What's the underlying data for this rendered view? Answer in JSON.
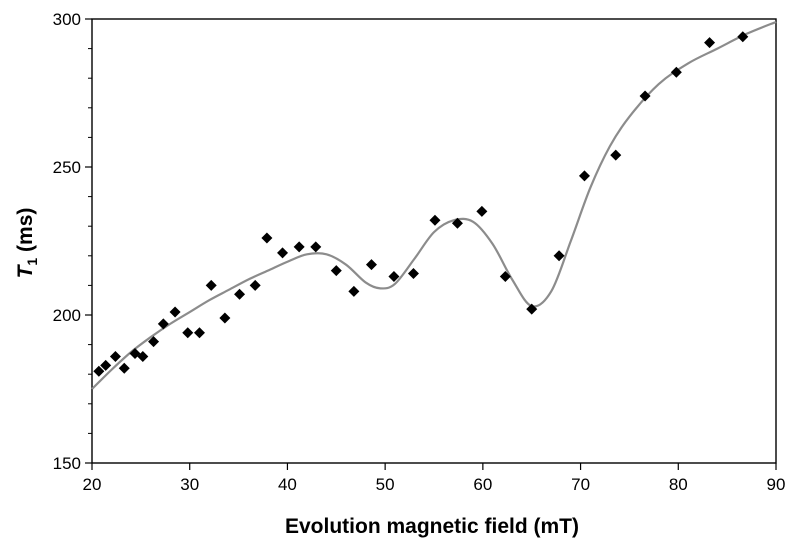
{
  "chart_data": {
    "type": "scatter",
    "title": "",
    "xlabel": "Evolution magnetic field (mT)",
    "ylabel": {
      "symbol": "T",
      "subscript": "1",
      "unit": " (ms)"
    },
    "xlim": [
      20,
      90
    ],
    "ylim": [
      150,
      300
    ],
    "xticks": [
      20,
      30,
      40,
      50,
      60,
      70,
      80,
      90
    ],
    "yticks": [
      150,
      200,
      250,
      300
    ],
    "grid": false,
    "legend": "none",
    "colors": {
      "markers": "#000000",
      "fit_line": "#8c8c8c"
    },
    "series": [
      {
        "kind": "markers",
        "marker": "diamond",
        "x": [
          20.7,
          21.4,
          22.4,
          23.3,
          24.4,
          25.2,
          26.3,
          27.3,
          28.5,
          29.8,
          31.0,
          32.2,
          33.6,
          35.1,
          36.7,
          37.9,
          39.5,
          41.2,
          42.9,
          45.0,
          48.6,
          46.8,
          50.9,
          52.9,
          55.1,
          57.4,
          59.9,
          62.3,
          65.0,
          67.8,
          70.4,
          73.6,
          76.6,
          79.8,
          83.2,
          86.6
        ],
        "y": [
          181,
          183,
          186,
          182,
          187,
          186,
          191,
          197,
          201,
          194,
          194,
          210,
          199,
          207,
          210,
          226,
          221,
          223,
          223,
          215,
          217,
          208,
          213,
          214,
          232,
          231,
          235,
          213,
          202,
          220,
          247,
          254,
          274,
          282,
          292,
          294
        ]
      },
      {
        "kind": "line",
        "x": [
          20,
          22,
          24,
          26,
          28,
          30,
          32,
          34,
          36,
          38,
          40,
          42,
          44,
          46,
          48,
          49.5,
          51,
          53,
          55,
          57,
          59,
          61,
          63,
          65,
          67,
          69,
          71,
          73,
          75,
          78,
          81,
          84,
          87,
          90
        ],
        "y": [
          175,
          181.5,
          187.5,
          192.5,
          197,
          201,
          205,
          208.5,
          212,
          215,
          218,
          220.5,
          220.5,
          217,
          211,
          209,
          210.5,
          219,
          228,
          232,
          231.5,
          224,
          212,
          203,
          208,
          225,
          243,
          257,
          267,
          278,
          285,
          290,
          295,
          299
        ]
      }
    ]
  }
}
